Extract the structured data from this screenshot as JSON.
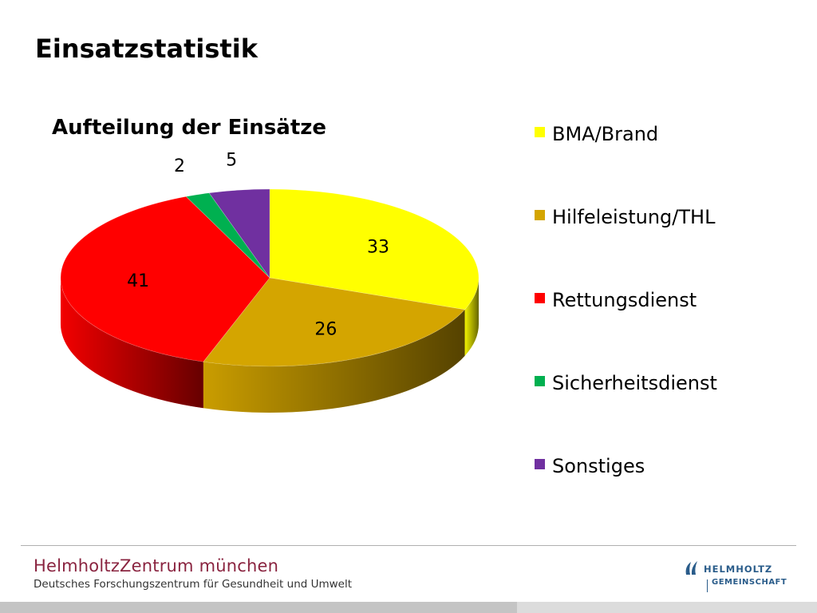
{
  "slide_title": "Einsatzstatistik",
  "chart_data": {
    "type": "pie",
    "title": "Aufteilung der Einsätze",
    "style": "3d",
    "legend_position": "right",
    "categories": [
      "BMA/Brand",
      "Hilfeleistung/THL",
      "Rettungsdienst",
      "Sicherheitsdienst",
      "Sonstiges"
    ],
    "values": [
      33,
      26,
      41,
      2,
      5
    ],
    "colors": [
      "#ffff00",
      "#d4a500",
      "#ff0000",
      "#00b050",
      "#7030a0"
    ]
  },
  "footer": {
    "org_name": "HelmholtzZentrum münchen",
    "org_subtitle": "Deutsches Forschungszentrum für Gesundheit und Umwelt",
    "logo_line1": "HELMHOLTZ",
    "logo_line2": "GEMEINSCHAFT"
  }
}
